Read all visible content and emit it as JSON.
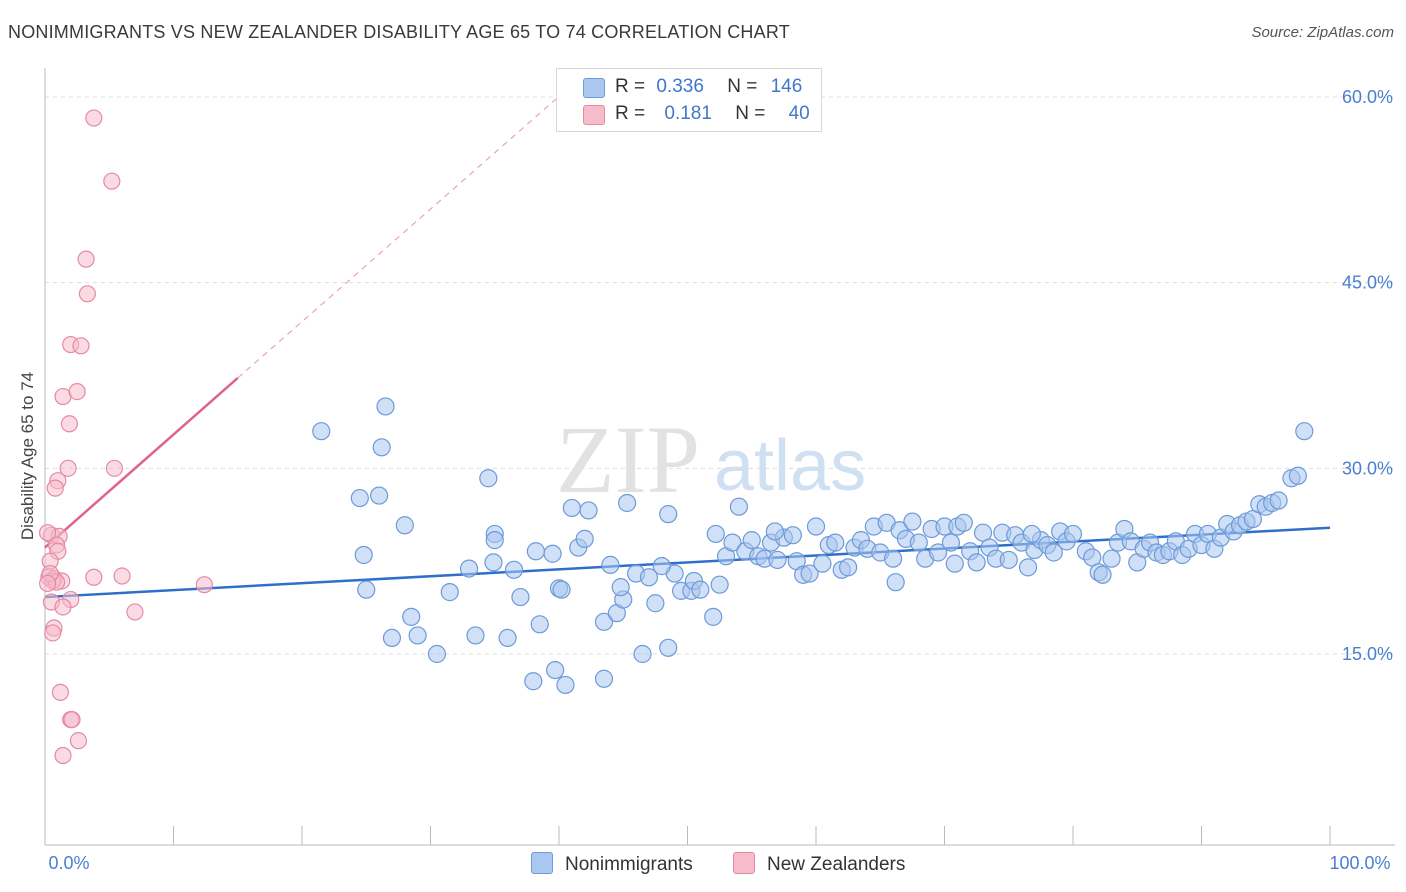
{
  "title": "NONIMMIGRANTS VS NEW ZEALANDER DISABILITY AGE 65 TO 74 CORRELATION CHART",
  "source": "Source: ZipAtlas.com",
  "colors": {
    "blue_fill": "#a9c7ef",
    "blue_stroke": "#6d9ad9",
    "blue_line": "#2f6fcb",
    "pink_fill": "#f6bccc",
    "pink_stroke": "#e48aa5",
    "pink_line": "#e0638b",
    "grid": "#dddddd",
    "axis_text": "#4a7fcf"
  },
  "legend": {
    "rows": [
      {
        "r_label": "R =",
        "r_value": "0.336",
        "n_label": "N =",
        "n_value": "146",
        "color": "#a9c7ef"
      },
      {
        "r_label": "R =",
        "r_value": "0.181",
        "n_label": "N =",
        "n_value": "40",
        "color": "#f6bccc"
      }
    ]
  },
  "bottom_legend": [
    {
      "label": "Nonimmigrants",
      "color": "#a9c7ef"
    },
    {
      "label": "New Zealanders",
      "color": "#f6bccc"
    }
  ],
  "watermark": {
    "zip": "ZIP",
    "atlas": "atlas"
  },
  "chart_data": {
    "type": "scatter",
    "title": "NONIMMIGRANTS VS NEW ZEALANDER DISABILITY AGE 65 TO 74 CORRELATION CHART",
    "xlabel": "",
    "ylabel": "Disability Age 65 to 74",
    "xlim": [
      0,
      100
    ],
    "ylim": [
      0,
      62
    ],
    "x_tick_labels": [
      "0.0%",
      "100.0%"
    ],
    "y_ticks": [
      15,
      30,
      45,
      60
    ],
    "y_tick_labels": [
      "15.0%",
      "30.0%",
      "45.0%",
      "60.0%"
    ],
    "grid": true,
    "legend_position": "top-center",
    "series": [
      {
        "name": "Nonimmigrants",
        "color": "#a9c7ef",
        "trend": {
          "x": [
            0,
            100
          ],
          "y": [
            19.6,
            25.2
          ],
          "style": "solid"
        },
        "points": [
          [
            21.5,
            33.0
          ],
          [
            26.5,
            35.0
          ],
          [
            24.5,
            27.6
          ],
          [
            26,
            27.8
          ],
          [
            24.8,
            23.0
          ],
          [
            26.2,
            31.7
          ],
          [
            25,
            20.2
          ],
          [
            28,
            25.4
          ],
          [
            27,
            16.3
          ],
          [
            28.5,
            18.0
          ],
          [
            29,
            16.5
          ],
          [
            30.5,
            15.0
          ],
          [
            31.5,
            20.0
          ],
          [
            33,
            21.9
          ],
          [
            33.5,
            16.5
          ],
          [
            35,
            24.7
          ],
          [
            35,
            24.2
          ],
          [
            34.5,
            29.2
          ],
          [
            36,
            16.3
          ],
          [
            37,
            19.6
          ],
          [
            38,
            12.8
          ],
          [
            38.2,
            23.3
          ],
          [
            38.5,
            17.4
          ],
          [
            39.5,
            23.1
          ],
          [
            40,
            20.3
          ],
          [
            40.2,
            20.2
          ],
          [
            40.5,
            12.5
          ],
          [
            41,
            26.8
          ],
          [
            41.5,
            23.6
          ],
          [
            42,
            24.3
          ],
          [
            42.3,
            26.6
          ],
          [
            43.5,
            13.0
          ],
          [
            43.5,
            17.6
          ],
          [
            44,
            22.2
          ],
          [
            44.5,
            18.3
          ],
          [
            45,
            19.4
          ],
          [
            45.3,
            27.2
          ],
          [
            46,
            21.5
          ],
          [
            46.5,
            15.0
          ],
          [
            47,
            21.2
          ],
          [
            47.5,
            19.1
          ],
          [
            48.5,
            26.3
          ],
          [
            48.5,
            15.5
          ],
          [
            49,
            21.5
          ],
          [
            49.5,
            20.1
          ],
          [
            50.3,
            20.1
          ],
          [
            50.5,
            20.9
          ],
          [
            51,
            20.2
          ],
          [
            52,
            18.0
          ],
          [
            52.5,
            20.6
          ],
          [
            53,
            22.9
          ],
          [
            53.5,
            24.0
          ],
          [
            54,
            26.9
          ],
          [
            54.5,
            23.3
          ],
          [
            55,
            24.2
          ],
          [
            55.5,
            22.9
          ],
          [
            56,
            22.7
          ],
          [
            56.5,
            24.0
          ],
          [
            57,
            22.6
          ],
          [
            57.5,
            24.4
          ],
          [
            58.5,
            22.5
          ],
          [
            59,
            21.4
          ],
          [
            59.5,
            21.5
          ],
          [
            60,
            25.3
          ],
          [
            60.5,
            22.3
          ],
          [
            61,
            23.8
          ],
          [
            62,
            21.8
          ],
          [
            62.5,
            22.0
          ],
          [
            63,
            23.6
          ],
          [
            63.5,
            24.2
          ],
          [
            64,
            23.5
          ],
          [
            64.5,
            25.3
          ],
          [
            65,
            23.2
          ],
          [
            65.5,
            25.6
          ],
          [
            66,
            22.7
          ],
          [
            66.5,
            25.0
          ],
          [
            67,
            24.3
          ],
          [
            67.5,
            25.7
          ],
          [
            68,
            24.0
          ],
          [
            68.5,
            22.7
          ],
          [
            69,
            25.1
          ],
          [
            69.5,
            23.2
          ],
          [
            70,
            25.3
          ],
          [
            70.5,
            24.0
          ],
          [
            71,
            25.3
          ],
          [
            71.5,
            25.6
          ],
          [
            72,
            23.3
          ],
          [
            72.5,
            22.4
          ],
          [
            73,
            24.8
          ],
          [
            73.5,
            23.6
          ],
          [
            74,
            22.7
          ],
          [
            74.5,
            24.8
          ],
          [
            75,
            22.6
          ],
          [
            75.5,
            24.6
          ],
          [
            76,
            24.0
          ],
          [
            76.5,
            22.0
          ],
          [
            77,
            23.4
          ],
          [
            77.5,
            24.2
          ],
          [
            78,
            23.8
          ],
          [
            78.5,
            23.2
          ],
          [
            79,
            24.9
          ],
          [
            79.5,
            24.1
          ],
          [
            80,
            24.7
          ],
          [
            81,
            23.3
          ],
          [
            81.5,
            22.8
          ],
          [
            82,
            21.6
          ],
          [
            82.3,
            21.4
          ],
          [
            83,
            22.7
          ],
          [
            83.5,
            24.0
          ],
          [
            84,
            25.1
          ],
          [
            84.5,
            24.1
          ],
          [
            85,
            22.4
          ],
          [
            85.5,
            23.5
          ],
          [
            86,
            24.0
          ],
          [
            86.5,
            23.2
          ],
          [
            87,
            23.0
          ],
          [
            87.5,
            23.3
          ],
          [
            88,
            24.1
          ],
          [
            88.5,
            23.0
          ],
          [
            89,
            23.5
          ],
          [
            89.5,
            24.7
          ],
          [
            90,
            23.8
          ],
          [
            90.5,
            24.7
          ],
          [
            91,
            23.5
          ],
          [
            91.5,
            24.4
          ],
          [
            92,
            25.5
          ],
          [
            92.5,
            24.9
          ],
          [
            93,
            25.4
          ],
          [
            93.5,
            25.7
          ],
          [
            94,
            25.9
          ],
          [
            94.5,
            27.1
          ],
          [
            95,
            26.9
          ],
          [
            95.5,
            27.2
          ],
          [
            96,
            27.4
          ],
          [
            97,
            29.2
          ],
          [
            97.5,
            29.4
          ],
          [
            98,
            33.0
          ],
          [
            44.8,
            20.4
          ],
          [
            39.7,
            13.7
          ],
          [
            56.8,
            24.9
          ],
          [
            36.5,
            21.8
          ],
          [
            61.5,
            24.0
          ],
          [
            70.8,
            22.3
          ],
          [
            58.2,
            24.6
          ],
          [
            52.2,
            24.7
          ],
          [
            34.9,
            22.4
          ],
          [
            48.0,
            22.1
          ],
          [
            66.2,
            20.8
          ],
          [
            76.8,
            24.7
          ]
        ]
      },
      {
        "name": "New Zealanders",
        "color": "#f6bccc",
        "trend": {
          "x": [
            0,
            15
          ],
          "y": [
            23.6,
            37.3
          ],
          "style": "solid",
          "extension_x": [
            15,
            40.5
          ],
          "extension_y": [
            37.3,
            60.5
          ]
        },
        "points": [
          [
            3.8,
            58.3
          ],
          [
            5.2,
            53.2
          ],
          [
            3.2,
            46.9
          ],
          [
            3.3,
            44.1
          ],
          [
            2.0,
            40.0
          ],
          [
            2.8,
            39.9
          ],
          [
            1.4,
            35.8
          ],
          [
            2.5,
            36.2
          ],
          [
            1.9,
            33.6
          ],
          [
            5.4,
            30.0
          ],
          [
            1.8,
            30.0
          ],
          [
            1.0,
            29.0
          ],
          [
            0.8,
            28.4
          ],
          [
            0.5,
            24.6
          ],
          [
            1.1,
            24.5
          ],
          [
            0.9,
            23.8
          ],
          [
            1.0,
            23.3
          ],
          [
            0.4,
            22.5
          ],
          [
            0.3,
            21.2
          ],
          [
            0.7,
            21.1
          ],
          [
            1.3,
            20.9
          ],
          [
            3.8,
            21.2
          ],
          [
            6.0,
            21.3
          ],
          [
            12.4,
            20.6
          ],
          [
            0.6,
            20.9
          ],
          [
            0.9,
            20.8
          ],
          [
            0.5,
            19.2
          ],
          [
            2.0,
            19.4
          ],
          [
            1.4,
            18.8
          ],
          [
            7.0,
            18.4
          ],
          [
            0.7,
            17.1
          ],
          [
            0.6,
            16.7
          ],
          [
            1.2,
            11.9
          ],
          [
            2.0,
            9.7
          ],
          [
            2.1,
            9.7
          ],
          [
            2.6,
            8.0
          ],
          [
            1.4,
            6.8
          ],
          [
            0.2,
            24.8
          ],
          [
            0.4,
            21.5
          ],
          [
            0.2,
            20.7
          ]
        ]
      }
    ]
  }
}
